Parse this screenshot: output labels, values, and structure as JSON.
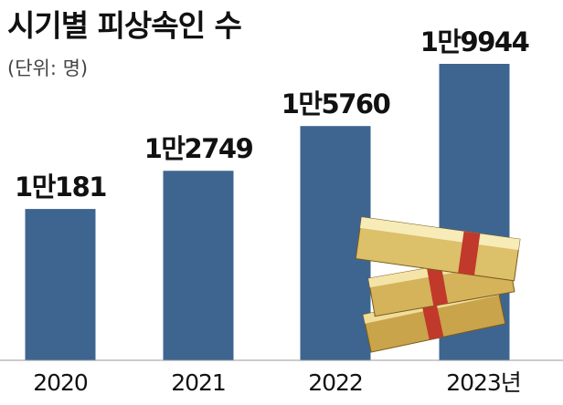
{
  "chart_data": {
    "type": "bar",
    "title": "시기별 피상속인 수",
    "subtitle": "(단위: 명)",
    "categories": [
      "2020",
      "2021",
      "2022",
      "2023년"
    ],
    "values": [
      10181,
      12749,
      15760,
      19944
    ],
    "value_labels": [
      "1만181",
      "1만2749",
      "1만5760",
      "1만9944"
    ],
    "color": "#3e6590"
  }
}
